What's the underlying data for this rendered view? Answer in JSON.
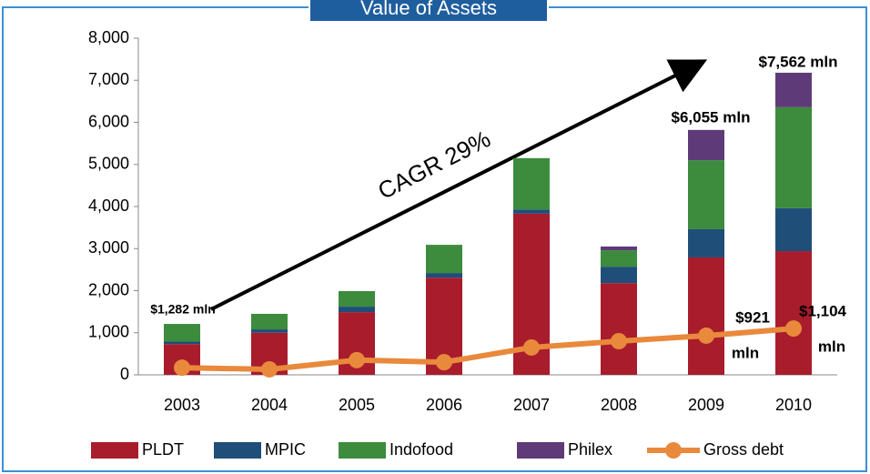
{
  "chart_data": {
    "type": "stacked_bar_line",
    "title": "Value of Assets",
    "categories": [
      "2003",
      "2004",
      "2005",
      "2006",
      "2007",
      "2008",
      "2009",
      "2010"
    ],
    "series": [
      {
        "name": "PLDT",
        "color": "#a81c2c",
        "kind": "bar",
        "values": [
          730,
          1000,
          1490,
          2310,
          3830,
          2180,
          2790,
          2940
        ]
      },
      {
        "name": "MPIC",
        "color": "#1f4e79",
        "kind": "bar",
        "values": [
          60,
          80,
          130,
          110,
          100,
          390,
          670,
          1020
        ]
      },
      {
        "name": "Indofood",
        "color": "#3d8b3d",
        "kind": "bar",
        "values": [
          420,
          370,
          370,
          670,
          1220,
          390,
          1640,
          2400
        ]
      },
      {
        "name": "Philex",
        "color": "#5e3b78",
        "kind": "bar",
        "values": [
          0,
          0,
          0,
          0,
          0,
          90,
          720,
          820
        ]
      },
      {
        "name": "Gross debt",
        "color": "#e8893c",
        "kind": "line",
        "values": [
          170,
          130,
          350,
          300,
          650,
          800,
          930,
          1100
        ]
      }
    ],
    "ylim": [
      0,
      8000
    ],
    "yticks": [
      0,
      {
        "value": 1000,
        "label": "1,000"
      },
      {
        "value": 2000,
        "label": "2,000"
      },
      {
        "value": 3000,
        "label": "3,000"
      },
      {
        "value": 4000,
        "label": "4,000"
      },
      {
        "value": 5000,
        "label": "5,000"
      },
      {
        "value": 6000,
        "label": "6,000"
      },
      {
        "value": 7000,
        "label": "7,000"
      },
      {
        "value": 8000,
        "label": "8,000"
      }
    ],
    "annotations": [
      {
        "lines": [
          "$1,282 mln"
        ]
      },
      {
        "lines": [
          "$6,055 mln"
        ]
      },
      {
        "lines": [
          "$7,562 mln"
        ]
      },
      {
        "lines": [
          "$921",
          "mln"
        ]
      },
      {
        "lines": [
          "$1,104",
          "mln"
        ]
      },
      {
        "lines": [
          "CAGR 29%"
        ]
      }
    ]
  }
}
